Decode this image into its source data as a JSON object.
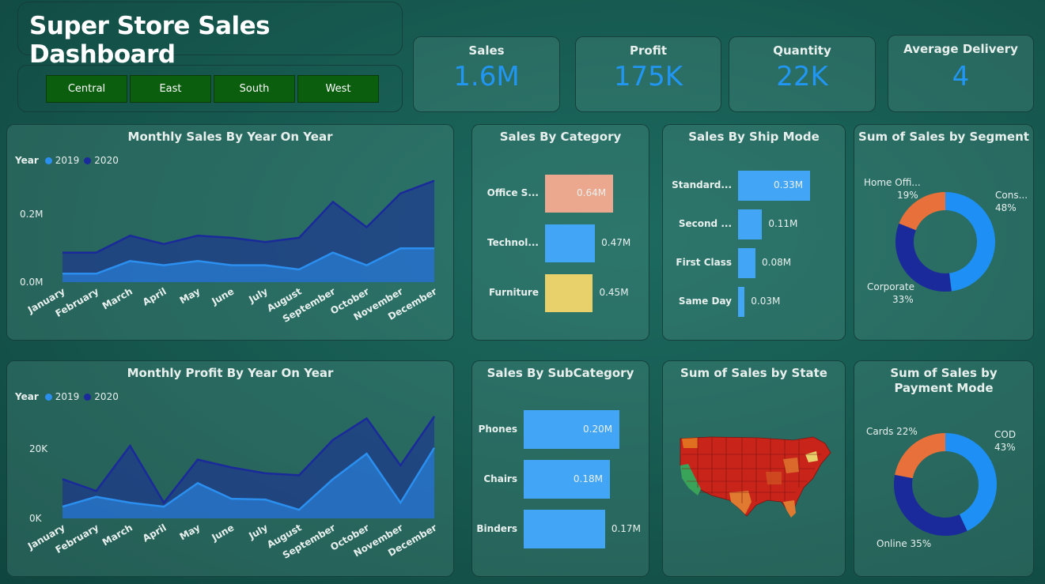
{
  "title": "Super Store Sales Dashboard",
  "regions": [
    "Central",
    "East",
    "South",
    "West"
  ],
  "kpis": [
    {
      "label": "Sales",
      "value": "1.6M"
    },
    {
      "label": "Profit",
      "value": "175K"
    },
    {
      "label": "Quantity",
      "value": "22K"
    },
    {
      "label": "Average Delivery",
      "value": "4"
    }
  ],
  "colors": {
    "y2019": "#2b8ff0",
    "y2020": "#1a2a9a",
    "accent": "#2196f3",
    "orange": "#e8a088",
    "yellow": "#e8d06a",
    "blue": "#42a5f5"
  },
  "monthly_sales": {
    "title": "Monthly Sales By Year On Year",
    "legend_title": "Year",
    "legend": [
      "2019",
      "2020"
    ],
    "y_ticks": [
      "0.2M",
      "0.0M"
    ],
    "months": [
      "January",
      "February",
      "March",
      "April",
      "May",
      "June",
      "July",
      "August",
      "September",
      "October",
      "November",
      "December"
    ]
  },
  "monthly_profit": {
    "title": "Monthly Profit By Year On Year",
    "legend_title": "Year",
    "legend": [
      "2019",
      "2020"
    ],
    "y_ticks": [
      "20K",
      "0K"
    ],
    "months": [
      "January",
      "February",
      "March",
      "April",
      "May",
      "June",
      "July",
      "August",
      "September",
      "October",
      "November",
      "December"
    ]
  },
  "category": {
    "title": "Sales By Category",
    "items": [
      {
        "label": "Office S...",
        "value": 0.64,
        "text": "0.64M",
        "color": "#eca88e"
      },
      {
        "label": "Technol...",
        "value": 0.47,
        "text": "0.47M",
        "color": "#42a5f5"
      },
      {
        "label": "Furniture",
        "value": 0.45,
        "text": "0.45M",
        "color": "#e8d06a"
      }
    ]
  },
  "ship_mode": {
    "title": "Sales By Ship Mode",
    "items": [
      {
        "label": "Standard...",
        "value": 0.33,
        "text": "0.33M"
      },
      {
        "label": "Second ...",
        "value": 0.11,
        "text": "0.11M"
      },
      {
        "label": "First Class",
        "value": 0.08,
        "text": "0.08M"
      },
      {
        "label": "Same Day",
        "value": 0.03,
        "text": "0.03M"
      }
    ]
  },
  "segment": {
    "title": "Sum of Sales by Segment",
    "labels": [
      {
        "name": "Cons...",
        "pct": "48%"
      },
      {
        "name": "Home Offi...",
        "pct": "19%"
      },
      {
        "name": "Corporate",
        "pct": "33%"
      }
    ]
  },
  "subcategory": {
    "title": "Sales By SubCategory",
    "items": [
      {
        "label": "Phones",
        "value": 0.2,
        "text": "0.20M"
      },
      {
        "label": "Chairs",
        "value": 0.18,
        "text": "0.18M"
      },
      {
        "label": "Binders",
        "value": 0.17,
        "text": "0.17M"
      }
    ]
  },
  "state": {
    "title": "Sum of Sales by State"
  },
  "payment": {
    "title": "Sum of Sales by Payment Mode",
    "labels": [
      {
        "name": "Cards 22%"
      },
      {
        "name": "COD",
        "pct": "43%"
      },
      {
        "name": "Online 35%"
      }
    ]
  },
  "chart_data": [
    {
      "type": "area",
      "title": "Monthly Sales By Year On Year",
      "categories": [
        "January",
        "February",
        "March",
        "April",
        "May",
        "June",
        "July",
        "August",
        "September",
        "October",
        "November",
        "December"
      ],
      "series": [
        {
          "name": "2019",
          "values": [
            0.02,
            0.02,
            0.05,
            0.04,
            0.05,
            0.04,
            0.04,
            0.03,
            0.07,
            0.04,
            0.08,
            0.08
          ]
        },
        {
          "name": "2020",
          "values": [
            0.07,
            0.07,
            0.11,
            0.09,
            0.11,
            0.105,
            0.095,
            0.105,
            0.19,
            0.13,
            0.21,
            0.24
          ]
        }
      ],
      "ylim": [
        0,
        0.26
      ]
    },
    {
      "type": "area",
      "title": "Monthly Profit By Year On Year",
      "categories": [
        "January",
        "February",
        "March",
        "April",
        "May",
        "June",
        "July",
        "August",
        "September",
        "October",
        "November",
        "December"
      ],
      "series": [
        {
          "name": "2019",
          "values": [
            3000,
            5500,
            4000,
            3000,
            9000,
            5000,
            4800,
            2200,
            10000,
            16500,
            4000,
            18000
          ]
        },
        {
          "name": "2020",
          "values": [
            10000,
            7000,
            18500,
            4000,
            15000,
            13000,
            11500,
            11000,
            20000,
            25500,
            13500,
            26000
          ]
        }
      ],
      "ylim": [
        0,
        28000
      ]
    },
    {
      "type": "bar",
      "title": "Sales By Category",
      "categories": [
        "Office S...",
        "Technol...",
        "Furniture"
      ],
      "values": [
        0.64,
        0.47,
        0.45
      ]
    },
    {
      "type": "bar",
      "title": "Sales By Ship Mode",
      "categories": [
        "Standard...",
        "Second ...",
        "First Class",
        "Same Day"
      ],
      "values": [
        0.33,
        0.11,
        0.08,
        0.03
      ]
    },
    {
      "type": "pie",
      "title": "Sum of Sales by Segment",
      "categories": [
        "Cons...",
        "Corporate",
        "Home Offi..."
      ],
      "values": [
        48,
        33,
        19
      ]
    },
    {
      "type": "bar",
      "title": "Sales By SubCategory",
      "categories": [
        "Phones",
        "Chairs",
        "Binders"
      ],
      "values": [
        0.2,
        0.18,
        0.17
      ]
    },
    {
      "type": "pie",
      "title": "Sum of Sales by Payment Mode",
      "categories": [
        "COD",
        "Online",
        "Cards"
      ],
      "values": [
        43,
        35,
        22
      ]
    }
  ]
}
